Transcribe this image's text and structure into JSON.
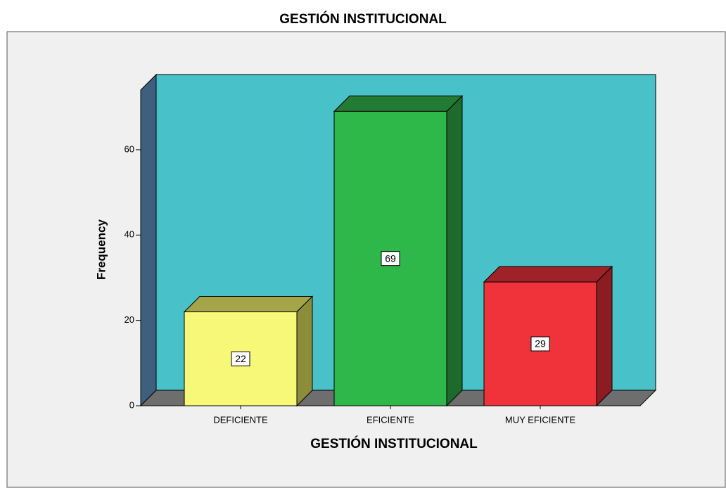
{
  "chart_data": {
    "type": "bar3d",
    "title": "GESTIÓN INSTITUCIONAL",
    "x_label": "GESTIÓN INSTITUCIONAL",
    "y_label": "Frequency",
    "categories": [
      "DEFICIENTE",
      "EFICIENTE",
      "MUY EFICIENTE"
    ],
    "values": [
      22,
      69,
      29
    ],
    "colors": [
      "#f8f878",
      "#2eb84a",
      "#f0323a"
    ],
    "side_colors": [
      "#8c8c3a",
      "#1e6a2c",
      "#8a1c22"
    ],
    "top_colors": [
      "#a4a448",
      "#237a33",
      "#a02229"
    ],
    "ylim": [
      0,
      74
    ],
    "yticks": [
      0,
      20,
      40,
      60
    ]
  }
}
